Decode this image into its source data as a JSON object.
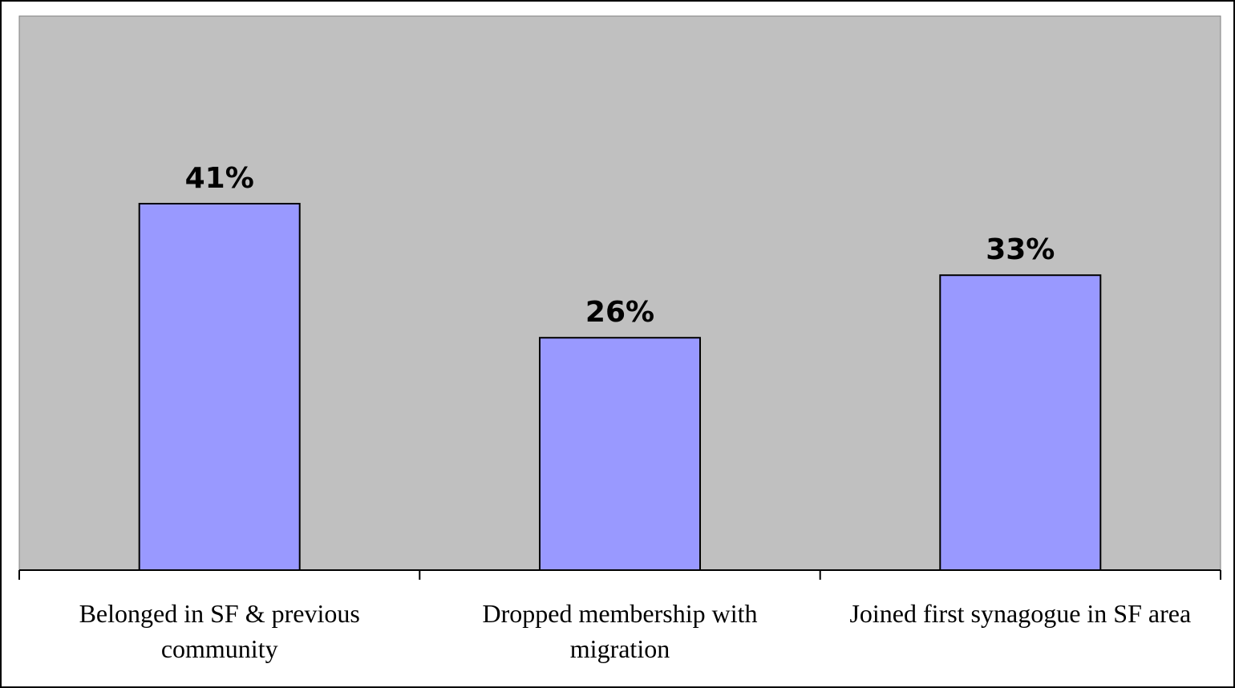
{
  "chart_data": {
    "type": "bar",
    "categories": [
      [
        "Belonged in SF & previous",
        "community"
      ],
      [
        "Dropped membership with",
        "migration"
      ],
      [
        "Joined first synagogue in SF area"
      ]
    ],
    "values": [
      41,
      26,
      33
    ],
    "data_labels": [
      "41%",
      "26%",
      "33%"
    ],
    "title": "",
    "xlabel": "",
    "ylabel": "",
    "ylim": [
      0,
      62
    ],
    "grid": false,
    "legend": "none",
    "colors": {
      "plot_background": "#c0c0c0",
      "bar_fill": "#9999ff",
      "bar_stroke": "#000000"
    }
  }
}
